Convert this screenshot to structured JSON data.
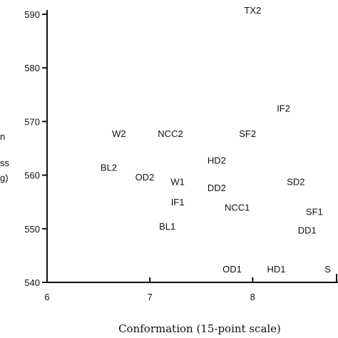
{
  "chart_data": {
    "type": "scatter",
    "title": "",
    "xlabel": "Conformation (15-point scale)",
    "ylabel_visible_fragments": [
      "n",
      "ss",
      "g)"
    ],
    "xlim": [
      6,
      8.75
    ],
    "ylim": [
      540,
      590
    ],
    "x_ticks": [
      6,
      7,
      8
    ],
    "y_ticks": [
      540,
      550,
      560,
      570,
      580,
      590
    ],
    "grid": false,
    "points": [
      {
        "label": "TX2",
        "x": 8.0,
        "y": 590.8
      },
      {
        "label": "IF2",
        "x": 8.3,
        "y": 572.5
      },
      {
        "label": "W2",
        "x": 6.7,
        "y": 567.8
      },
      {
        "label": "NCC2",
        "x": 7.2,
        "y": 567.8
      },
      {
        "label": "SF2",
        "x": 7.95,
        "y": 567.8
      },
      {
        "label": "HD2",
        "x": 7.65,
        "y": 562.8
      },
      {
        "label": "BL2",
        "x": 6.6,
        "y": 561.5
      },
      {
        "label": "OD2",
        "x": 6.95,
        "y": 559.7
      },
      {
        "label": "W1",
        "x": 7.27,
        "y": 558.8
      },
      {
        "label": "DD2",
        "x": 7.65,
        "y": 557.7
      },
      {
        "label": "SD2",
        "x": 8.42,
        "y": 558.8
      },
      {
        "label": "IF1",
        "x": 7.27,
        "y": 555.0
      },
      {
        "label": "NCC1",
        "x": 7.85,
        "y": 554.0
      },
      {
        "label": "SF1",
        "x": 8.6,
        "y": 553.2
      },
      {
        "label": "BL1",
        "x": 7.17,
        "y": 550.5
      },
      {
        "label": "DD1",
        "x": 8.53,
        "y": 549.8
      },
      {
        "label": "OD1",
        "x": 7.8,
        "y": 542.5
      },
      {
        "label": "HD1",
        "x": 8.23,
        "y": 542.5
      },
      {
        "label": "S",
        "x": 8.73,
        "y": 542.5
      }
    ]
  }
}
